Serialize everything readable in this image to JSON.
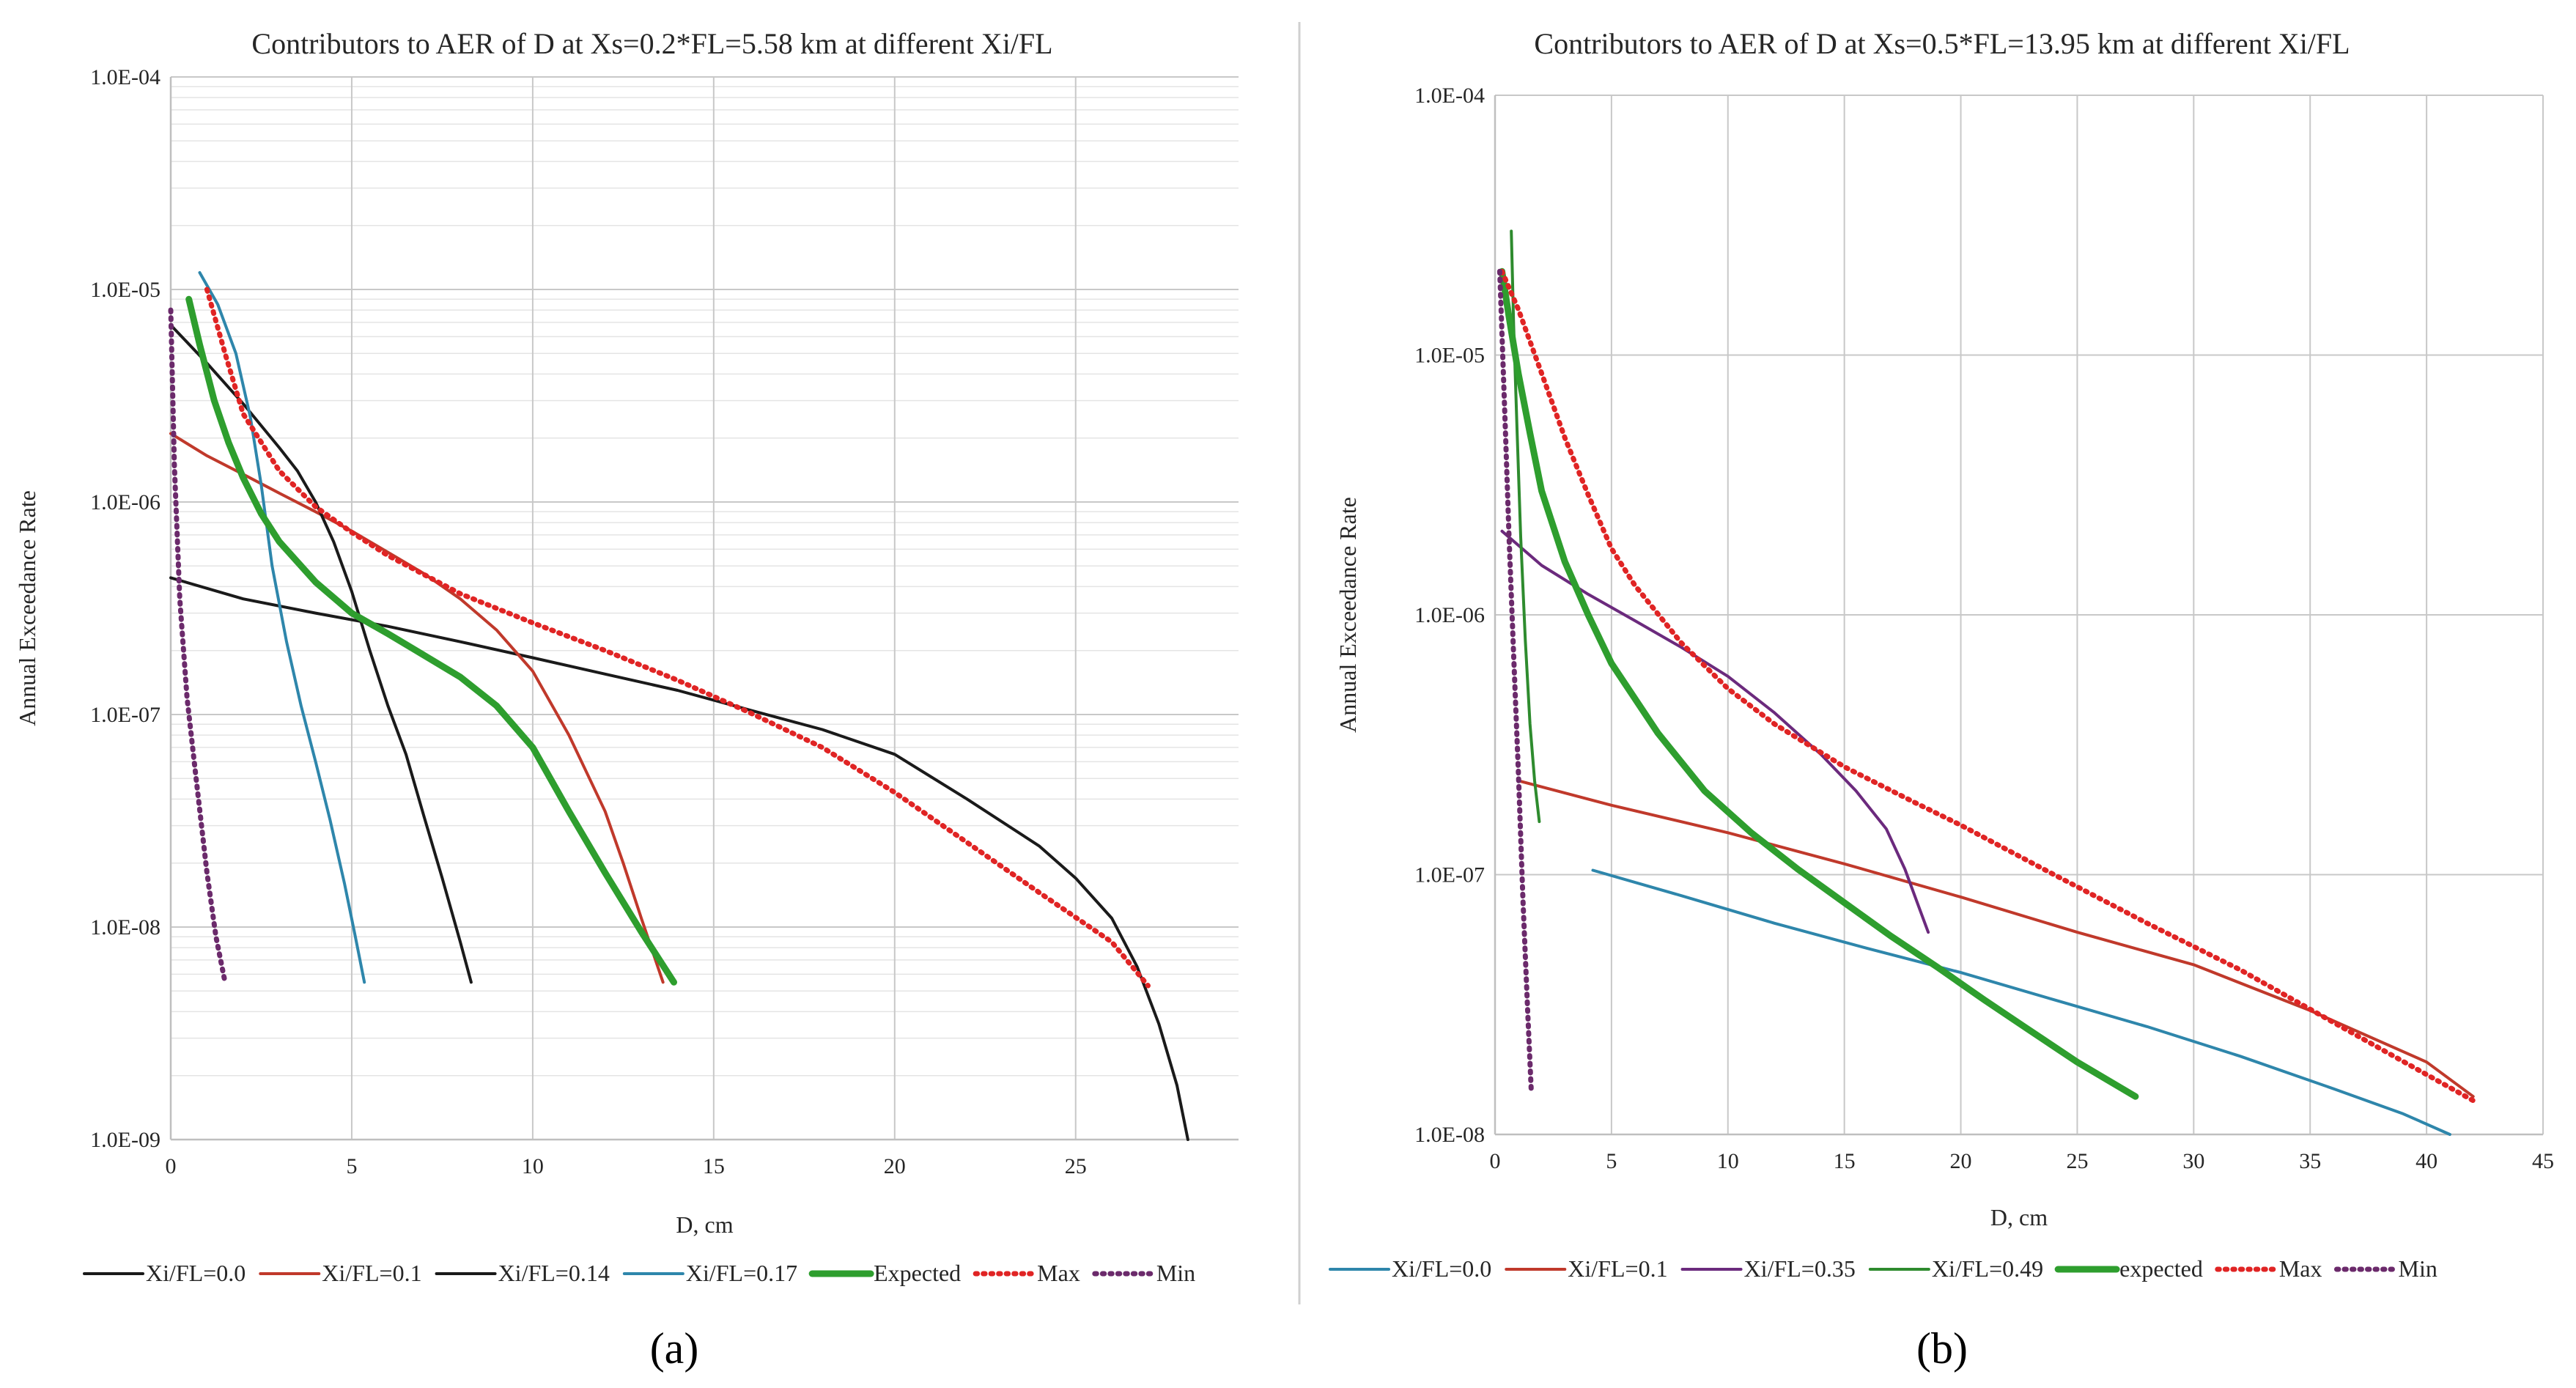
{
  "chart_data": [
    {
      "type": "line",
      "panel_label": "(a)",
      "title": "Contributors to AER of D at Xs=0.2*FL=5.58 km  at different  Xi/FL",
      "xlabel": "D, cm",
      "ylabel": "Annual Exceedance Rate",
      "yscale": "log",
      "xlim": [
        0,
        29.5
      ],
      "ylim": [
        1e-09,
        0.0001
      ],
      "x_ticks": [
        0,
        5,
        10,
        15,
        20,
        25
      ],
      "x_tick_labels": [
        "0",
        "5",
        "10",
        "15",
        "20",
        "25"
      ],
      "y_ticks": [
        1e-09,
        1e-08,
        1e-07,
        1e-06,
        1e-05,
        0.0001
      ],
      "y_tick_labels": [
        "1.0E-09",
        "1.0E-08",
        "1.0E-07",
        "1.0E-06",
        "1.0E-05",
        "1.0E-04"
      ],
      "grid": "major and minor horizontal, major vertical",
      "legend_position": "bottom",
      "series": [
        {
          "name": "Xi/FL=0.0",
          "color": "#1a1a1a",
          "width": 4,
          "dash": "solid",
          "x": [
            0,
            2,
            4,
            6,
            8,
            10,
            12,
            14,
            16,
            18,
            20,
            22,
            24,
            25,
            26,
            26.7,
            27.3,
            27.8,
            28.1
          ],
          "y": [
            4.4e-07,
            3.5e-07,
            3e-07,
            2.6e-07,
            2.2e-07,
            1.85e-07,
            1.55e-07,
            1.3e-07,
            1.05e-07,
            8.5e-08,
            6.5e-08,
            4e-08,
            2.4e-08,
            1.7e-08,
            1.1e-08,
            6.5e-09,
            3.5e-09,
            1.8e-09,
            1e-09
          ]
        },
        {
          "name": "Xi/FL=0.1",
          "color": "#c0392b",
          "width": 4,
          "dash": "solid",
          "x": [
            0,
            1,
            2,
            3,
            4,
            5,
            6,
            7,
            8,
            9,
            10,
            11,
            12,
            12.5,
            13,
            13.6
          ],
          "y": [
            2.1e-06,
            1.65e-06,
            1.35e-06,
            1.1e-06,
            9e-07,
            7.3e-07,
            5.8e-07,
            4.6e-07,
            3.5e-07,
            2.5e-07,
            1.6e-07,
            8e-08,
            3.5e-08,
            2e-08,
            1.1e-08,
            5.5e-09
          ]
        },
        {
          "name": "Xi/FL=0.14",
          "color": "#1a1a1a",
          "width": 4,
          "dash": "solid",
          "x": [
            0,
            1,
            2,
            3,
            3.5,
            4,
            4.5,
            5,
            5.5,
            6,
            6.5,
            7,
            7.5,
            8,
            8.3
          ],
          "y": [
            6.8e-06,
            4.5e-06,
            2.9e-06,
            1.8e-06,
            1.4e-06,
            1e-06,
            6.5e-07,
            3.8e-07,
            2e-07,
            1.1e-07,
            6.5e-08,
            3.3e-08,
            1.7e-08,
            8.5e-09,
            5.5e-09
          ]
        },
        {
          "name": "Xi/FL=0.17",
          "color": "#2e86ab",
          "width": 4,
          "dash": "solid",
          "x": [
            0.8,
            1.3,
            1.8,
            2.2,
            2.5,
            2.8,
            3.2,
            3.6,
            4,
            4.4,
            4.8,
            5.1,
            5.35
          ],
          "y": [
            1.2e-05,
            8.5e-06,
            5e-06,
            2.5e-06,
            1.2e-06,
            5e-07,
            2.2e-07,
            1.1e-07,
            6e-08,
            3.2e-08,
            1.6e-08,
            9e-09,
            5.5e-09
          ]
        },
        {
          "name": "Expected",
          "color": "#2e9e2e",
          "width": 9,
          "dash": "solid",
          "x": [
            0.5,
            0.8,
            1.2,
            1.6,
            2,
            2.5,
            3,
            4,
            5,
            6,
            7,
            8,
            9,
            10,
            11,
            12,
            13,
            13.9
          ],
          "y": [
            9e-06,
            5.5e-06,
            3e-06,
            1.9e-06,
            1.3e-06,
            8.8e-07,
            6.5e-07,
            4.2e-07,
            3e-07,
            2.4e-07,
            1.9e-07,
            1.5e-07,
            1.1e-07,
            7e-08,
            3.5e-08,
            1.8e-08,
            9.5e-09,
            5.5e-09
          ]
        },
        {
          "name": "Max",
          "color": "#e02424",
          "width": 7,
          "dash": "dotted",
          "x": [
            1,
            1.5,
            2,
            3,
            4,
            5,
            6,
            8,
            10,
            12,
            14,
            16,
            18,
            20,
            22,
            24,
            26,
            27
          ],
          "y": [
            1e-05,
            5e-06,
            2.6e-06,
            1.4e-06,
            9.5e-07,
            7.2e-07,
            5.6e-07,
            3.7e-07,
            2.7e-07,
            2e-07,
            1.45e-07,
            1.02e-07,
            7e-08,
            4.3e-08,
            2.5e-08,
            1.45e-08,
            8.5e-09,
            5.3e-09
          ]
        },
        {
          "name": "Min",
          "color": "#6b2a6b",
          "width": 7,
          "dash": "dotted",
          "x": [
            0,
            0.1,
            0.25,
            0.45,
            0.7,
            1,
            1.25,
            1.5
          ],
          "y": [
            8e-06,
            1.5e-06,
            3.5e-07,
            1.2e-07,
            5e-08,
            1.8e-08,
            9e-09,
            5.5e-09
          ]
        }
      ]
    },
    {
      "type": "line",
      "panel_label": "(b)",
      "title": "Contributors to AER of D at Xs=0.5*FL=13.95 km at different  Xi/FL",
      "xlabel": "D, cm",
      "ylabel": "Annual Exceedance Rate",
      "yscale": "log",
      "xlim": [
        0,
        45
      ],
      "ylim": [
        1e-08,
        0.0001
      ],
      "x_ticks": [
        0,
        5,
        10,
        15,
        20,
        25,
        30,
        35,
        40,
        45
      ],
      "x_tick_labels": [
        "0",
        "5",
        "10",
        "15",
        "20",
        "25",
        "30",
        "35",
        "40",
        "45"
      ],
      "y_ticks": [
        1e-08,
        1e-07,
        1e-06,
        1e-05,
        0.0001
      ],
      "y_tick_labels": [
        "1.0E-08",
        "1.0E-07",
        "1.0E-06",
        "1.0E-05",
        "1.0E-04"
      ],
      "grid": "major horizontal and vertical",
      "legend_position": "bottom",
      "series": [
        {
          "name": "Xi/FL=0.0",
          "color": "#2e86ab",
          "width": 4,
          "dash": "solid",
          "x": [
            4.2,
            8,
            12,
            16,
            20,
            24,
            28,
            32,
            36,
            39,
            41
          ],
          "y": [
            1.04e-07,
            8.3e-08,
            6.5e-08,
            5.2e-08,
            4.2e-08,
            3.3e-08,
            2.6e-08,
            2e-08,
            1.5e-08,
            1.2e-08,
            1e-08
          ]
        },
        {
          "name": "Xi/FL=0.1",
          "color": "#c0392b",
          "width": 4,
          "dash": "solid",
          "x": [
            1,
            5,
            10,
            15,
            20,
            25,
            30,
            35,
            40,
            42
          ],
          "y": [
            2.3e-07,
            1.85e-07,
            1.45e-07,
            1.1e-07,
            8.2e-08,
            6e-08,
            4.5e-08,
            3e-08,
            1.9e-08,
            1.4e-08
          ]
        },
        {
          "name": "Xi/FL=0.35",
          "color": "#6b2a7d",
          "width": 4,
          "dash": "solid",
          "x": [
            0.3,
            2,
            4,
            6,
            8,
            10,
            12,
            14,
            15.5,
            16.8,
            17.6,
            18.2,
            18.6
          ],
          "y": [
            2.1e-06,
            1.55e-06,
            1.2e-06,
            9.5e-07,
            7.5e-07,
            5.8e-07,
            4.2e-07,
            2.9e-07,
            2.1e-07,
            1.5e-07,
            1.05e-07,
            7.5e-08,
            6e-08
          ]
        },
        {
          "name": "Xi/FL=0.49",
          "color": "#2e8b2e",
          "width": 4,
          "dash": "solid",
          "x": [
            0.7,
            0.8,
            0.95,
            1.1,
            1.3,
            1.5,
            1.7,
            1.9
          ],
          "y": [
            3e-05,
            1.3e-05,
            5e-06,
            2e-06,
            8e-07,
            3.8e-07,
            2.3e-07,
            1.6e-07
          ]
        },
        {
          "name": "expected",
          "color": "#2e9e2e",
          "width": 9,
          "dash": "solid",
          "x": [
            0.3,
            0.6,
            1,
            1.5,
            2,
            3,
            4,
            5,
            7,
            9,
            11,
            13,
            15,
            17,
            19,
            21,
            23,
            25,
            27.5
          ],
          "y": [
            2.1e-05,
            1.4e-05,
            8.5e-06,
            5e-06,
            3e-06,
            1.6e-06,
            1e-06,
            6.5e-07,
            3.5e-07,
            2.1e-07,
            1.45e-07,
            1.05e-07,
            7.8e-08,
            5.8e-08,
            4.4e-08,
            3.3e-08,
            2.5e-08,
            1.9e-08,
            1.4e-08
          ]
        },
        {
          "name": "Max",
          "color": "#e02424",
          "width": 7,
          "dash": "dotted",
          "x": [
            0.3,
            1,
            2,
            3,
            4,
            5,
            6,
            8,
            10,
            12,
            15,
            18,
            20,
            24,
            28,
            32,
            36,
            40,
            42
          ],
          "y": [
            2.1e-05,
            1.5e-05,
            8.5e-06,
            4.8e-06,
            2.9e-06,
            1.8e-06,
            1.3e-06,
            7.8e-07,
            5.2e-07,
            3.8e-07,
            2.6e-07,
            1.9e-07,
            1.55e-07,
            1e-07,
            6.5e-08,
            4.3e-08,
            2.7e-08,
            1.7e-08,
            1.35e-08
          ]
        },
        {
          "name": "Min",
          "color": "#6b2a6b",
          "width": 7,
          "dash": "dotted",
          "x": [
            0.2,
            0.3,
            0.45,
            0.6,
            0.8,
            1,
            1.2,
            1.4,
            1.55
          ],
          "y": [
            2.1e-05,
            1.2e-05,
            5e-06,
            2e-06,
            7e-07,
            2.5e-07,
            8e-08,
            3e-08,
            1.5e-08
          ]
        }
      ]
    }
  ]
}
